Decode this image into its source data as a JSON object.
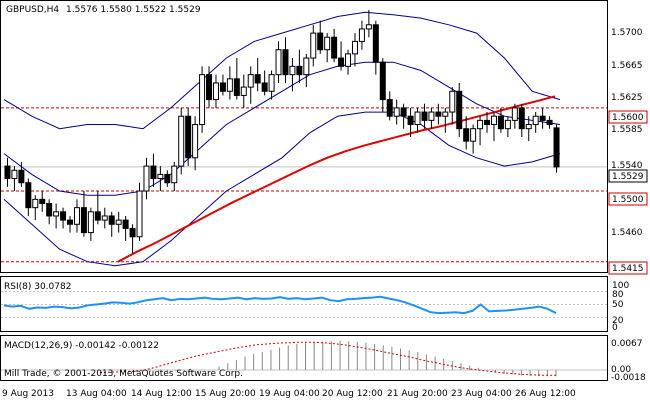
{
  "header": {
    "symbol": "GBPUSD,H4",
    "ohlc": "1.5576 1.5580 1.5522 1.5529"
  },
  "colors": {
    "background": "#ffffff",
    "candle_bull": "#ffffff",
    "candle_bear": "#000000",
    "bollinger": "#00008b",
    "moving_average": "#e00000",
    "level_line": "#cc0000",
    "rsi_line": "#1e90ff",
    "macd_signal": "#cc0000",
    "macd_hist": "#888888",
    "grid": "#c0c0c0"
  },
  "main_panel": {
    "price_axis_ticks": [
      "1.5700",
      "1.5665",
      "1.5625",
      "1.5585",
      "1.5540",
      "1.5460"
    ],
    "levels": [
      {
        "label": "1.5600",
        "price": 1.56
      },
      {
        "label": "1.5500",
        "price": 1.55
      },
      {
        "label": "1.5415",
        "price": 1.5415
      }
    ],
    "current_price_label": "1.5529",
    "current_price": 1.5529
  },
  "rsi_panel": {
    "title": "RSI(8) 30.0782",
    "axis_ticks": [
      "100",
      "80",
      "50",
      "20",
      "0"
    ]
  },
  "macd_panel": {
    "title": "MACD(12,26,9) -0.00142 -0.00122",
    "copyright": "Mill Trade, © 2001-2013, MetaQuotes Software Corp.",
    "axis_ticks": [
      "0.0067",
      "0.00",
      "-0.0018"
    ]
  },
  "time_axis": {
    "labels": [
      "9 Aug 2013",
      "13 Aug 04:00",
      "14 Aug 12:00",
      "15 Aug 20:00",
      "19 Aug 04:00",
      "20 Aug 12:00",
      "21 Aug 20:00",
      "23 Aug 04:00",
      "26 Aug 12:00"
    ]
  },
  "chart_data": {
    "type": "candlestick",
    "price_range": [
      1.5405,
      1.5725
    ],
    "candles": [
      {
        "o": 1.553,
        "h": 1.554,
        "l": 1.5505,
        "c": 1.5515
      },
      {
        "o": 1.5515,
        "h": 1.553,
        "l": 1.55,
        "c": 1.5525
      },
      {
        "o": 1.5525,
        "h": 1.5535,
        "l": 1.5505,
        "c": 1.551
      },
      {
        "o": 1.551,
        "h": 1.5515,
        "l": 1.547,
        "c": 1.548
      },
      {
        "o": 1.548,
        "h": 1.5495,
        "l": 1.5465,
        "c": 1.549
      },
      {
        "o": 1.549,
        "h": 1.55,
        "l": 1.5475,
        "c": 1.5485
      },
      {
        "o": 1.5485,
        "h": 1.549,
        "l": 1.546,
        "c": 1.547
      },
      {
        "o": 1.547,
        "h": 1.5485,
        "l": 1.5455,
        "c": 1.5475
      },
      {
        "o": 1.5475,
        "h": 1.548,
        "l": 1.5455,
        "c": 1.5465
      },
      {
        "o": 1.5465,
        "h": 1.547,
        "l": 1.545,
        "c": 1.546
      },
      {
        "o": 1.546,
        "h": 1.549,
        "l": 1.545,
        "c": 1.548
      },
      {
        "o": 1.548,
        "h": 1.55,
        "l": 1.5445,
        "c": 1.545
      },
      {
        "o": 1.545,
        "h": 1.548,
        "l": 1.544,
        "c": 1.5475
      },
      {
        "o": 1.5475,
        "h": 1.55,
        "l": 1.546,
        "c": 1.5465
      },
      {
        "o": 1.5465,
        "h": 1.548,
        "l": 1.5455,
        "c": 1.547
      },
      {
        "o": 1.547,
        "h": 1.5475,
        "l": 1.5445,
        "c": 1.546
      },
      {
        "o": 1.546,
        "h": 1.5475,
        "l": 1.545,
        "c": 1.5465
      },
      {
        "o": 1.5465,
        "h": 1.547,
        "l": 1.544,
        "c": 1.5455
      },
      {
        "o": 1.5455,
        "h": 1.546,
        "l": 1.5425,
        "c": 1.5445
      },
      {
        "o": 1.5445,
        "h": 1.551,
        "l": 1.544,
        "c": 1.55
      },
      {
        "o": 1.55,
        "h": 1.554,
        "l": 1.549,
        "c": 1.553
      },
      {
        "o": 1.553,
        "h": 1.5545,
        "l": 1.5505,
        "c": 1.5515
      },
      {
        "o": 1.5515,
        "h": 1.553,
        "l": 1.55,
        "c": 1.552
      },
      {
        "o": 1.552,
        "h": 1.5525,
        "l": 1.5505,
        "c": 1.551
      },
      {
        "o": 1.551,
        "h": 1.5535,
        "l": 1.55,
        "c": 1.553
      },
      {
        "o": 1.553,
        "h": 1.56,
        "l": 1.552,
        "c": 1.559
      },
      {
        "o": 1.559,
        "h": 1.56,
        "l": 1.553,
        "c": 1.554
      },
      {
        "o": 1.554,
        "h": 1.559,
        "l": 1.5525,
        "c": 1.558
      },
      {
        "o": 1.558,
        "h": 1.565,
        "l": 1.557,
        "c": 1.564
      },
      {
        "o": 1.564,
        "h": 1.565,
        "l": 1.56,
        "c": 1.561
      },
      {
        "o": 1.561,
        "h": 1.564,
        "l": 1.56,
        "c": 1.563
      },
      {
        "o": 1.563,
        "h": 1.564,
        "l": 1.5615,
        "c": 1.562
      },
      {
        "o": 1.562,
        "h": 1.565,
        "l": 1.561,
        "c": 1.5635
      },
      {
        "o": 1.5635,
        "h": 1.566,
        "l": 1.561,
        "c": 1.5615
      },
      {
        "o": 1.5615,
        "h": 1.564,
        "l": 1.56,
        "c": 1.5625
      },
      {
        "o": 1.5625,
        "h": 1.565,
        "l": 1.5605,
        "c": 1.564
      },
      {
        "o": 1.564,
        "h": 1.566,
        "l": 1.562,
        "c": 1.563
      },
      {
        "o": 1.563,
        "h": 1.5645,
        "l": 1.5615,
        "c": 1.562
      },
      {
        "o": 1.562,
        "h": 1.5645,
        "l": 1.561,
        "c": 1.564
      },
      {
        "o": 1.564,
        "h": 1.568,
        "l": 1.563,
        "c": 1.567
      },
      {
        "o": 1.567,
        "h": 1.5685,
        "l": 1.563,
        "c": 1.564
      },
      {
        "o": 1.564,
        "h": 1.566,
        "l": 1.562,
        "c": 1.565
      },
      {
        "o": 1.565,
        "h": 1.567,
        "l": 1.563,
        "c": 1.564
      },
      {
        "o": 1.564,
        "h": 1.5665,
        "l": 1.5625,
        "c": 1.566
      },
      {
        "o": 1.566,
        "h": 1.57,
        "l": 1.565,
        "c": 1.569
      },
      {
        "o": 1.569,
        "h": 1.5705,
        "l": 1.5665,
        "c": 1.567
      },
      {
        "o": 1.567,
        "h": 1.569,
        "l": 1.5655,
        "c": 1.5685
      },
      {
        "o": 1.5685,
        "h": 1.5695,
        "l": 1.5655,
        "c": 1.566
      },
      {
        "o": 1.566,
        "h": 1.568,
        "l": 1.5645,
        "c": 1.565
      },
      {
        "o": 1.565,
        "h": 1.567,
        "l": 1.564,
        "c": 1.5665
      },
      {
        "o": 1.5665,
        "h": 1.569,
        "l": 1.565,
        "c": 1.568
      },
      {
        "o": 1.568,
        "h": 1.5705,
        "l": 1.567,
        "c": 1.5695
      },
      {
        "o": 1.5695,
        "h": 1.5718,
        "l": 1.5685,
        "c": 1.57
      },
      {
        "o": 1.57,
        "h": 1.5705,
        "l": 1.564,
        "c": 1.5655
      },
      {
        "o": 1.5655,
        "h": 1.566,
        "l": 1.5595,
        "c": 1.561
      },
      {
        "o": 1.561,
        "h": 1.562,
        "l": 1.5585,
        "c": 1.559
      },
      {
        "o": 1.559,
        "h": 1.561,
        "l": 1.558,
        "c": 1.56
      },
      {
        "o": 1.56,
        "h": 1.5605,
        "l": 1.5575,
        "c": 1.559
      },
      {
        "o": 1.559,
        "h": 1.56,
        "l": 1.5565,
        "c": 1.558
      },
      {
        "o": 1.558,
        "h": 1.56,
        "l": 1.557,
        "c": 1.5595
      },
      {
        "o": 1.5595,
        "h": 1.5605,
        "l": 1.5575,
        "c": 1.5585
      },
      {
        "o": 1.5585,
        "h": 1.56,
        "l": 1.5575,
        "c": 1.5595
      },
      {
        "o": 1.5595,
        "h": 1.5605,
        "l": 1.558,
        "c": 1.559
      },
      {
        "o": 1.559,
        "h": 1.56,
        "l": 1.557,
        "c": 1.5595
      },
      {
        "o": 1.5595,
        "h": 1.5625,
        "l": 1.558,
        "c": 1.562
      },
      {
        "o": 1.562,
        "h": 1.563,
        "l": 1.5565,
        "c": 1.5575
      },
      {
        "o": 1.5575,
        "h": 1.559,
        "l": 1.555,
        "c": 1.556
      },
      {
        "o": 1.556,
        "h": 1.558,
        "l": 1.5545,
        "c": 1.5575
      },
      {
        "o": 1.5575,
        "h": 1.559,
        "l": 1.5555,
        "c": 1.5585
      },
      {
        "o": 1.5585,
        "h": 1.5595,
        "l": 1.557,
        "c": 1.558
      },
      {
        "o": 1.558,
        "h": 1.5595,
        "l": 1.556,
        "c": 1.559
      },
      {
        "o": 1.559,
        "h": 1.56,
        "l": 1.557,
        "c": 1.5575
      },
      {
        "o": 1.5575,
        "h": 1.559,
        "l": 1.5565,
        "c": 1.5585
      },
      {
        "o": 1.5585,
        "h": 1.5605,
        "l": 1.5575,
        "c": 1.56
      },
      {
        "o": 1.56,
        "h": 1.5605,
        "l": 1.5565,
        "c": 1.5575
      },
      {
        "o": 1.5575,
        "h": 1.559,
        "l": 1.556,
        "c": 1.558
      },
      {
        "o": 1.558,
        "h": 1.5595,
        "l": 1.557,
        "c": 1.559
      },
      {
        "o": 1.559,
        "h": 1.56,
        "l": 1.5575,
        "c": 1.5585
      },
      {
        "o": 1.5585,
        "h": 1.559,
        "l": 1.5575,
        "c": 1.558
      },
      {
        "o": 1.5576,
        "h": 1.558,
        "l": 1.5522,
        "c": 1.5529
      }
    ],
    "moving_average": [
      1.5415,
      1.5427,
      1.5438,
      1.545,
      1.5462,
      1.5474,
      1.5486,
      1.5497,
      1.5508,
      1.5519,
      1.553,
      1.554,
      1.5548,
      1.5555,
      1.5561,
      1.5567,
      1.5573,
      1.5578,
      1.5584,
      1.559,
      1.5596,
      1.5602,
      1.5608,
      1.5614
    ],
    "bollinger_upper": [
      1.561,
      1.559,
      1.5575,
      1.558,
      1.558,
      1.5575,
      1.56,
      1.563,
      1.566,
      1.568,
      1.569,
      1.57,
      1.571,
      1.5715,
      1.5712,
      1.5708,
      1.57,
      1.569,
      1.566,
      1.562,
      1.561
    ],
    "bollinger_middle": [
      1.5545,
      1.552,
      1.55,
      1.5495,
      1.5495,
      1.55,
      1.552,
      1.555,
      1.558,
      1.56,
      1.562,
      1.564,
      1.565,
      1.5655,
      1.5655,
      1.5645,
      1.5625,
      1.5605,
      1.559,
      1.5585,
      1.558
    ],
    "bollinger_lower": [
      1.549,
      1.546,
      1.543,
      1.5415,
      1.541,
      1.5415,
      1.544,
      1.547,
      1.55,
      1.552,
      1.554,
      1.557,
      1.559,
      1.5595,
      1.5595,
      1.558,
      1.5555,
      1.554,
      1.553,
      1.5535,
      1.5545
    ],
    "rsi": [
      48,
      45,
      47,
      40,
      43,
      42,
      45,
      44,
      41,
      43,
      48,
      50,
      52,
      55,
      54,
      52,
      55,
      60,
      62,
      65,
      60,
      63,
      62,
      64,
      66,
      63,
      62,
      64,
      66,
      62,
      65,
      63,
      64,
      67,
      63,
      65,
      62,
      64,
      66,
      60,
      58,
      62,
      63,
      65,
      66,
      68,
      64,
      60,
      55,
      48,
      40,
      32,
      30,
      31,
      32,
      30,
      35,
      50,
      34,
      35,
      36,
      38,
      40,
      42,
      45,
      40,
      30
    ],
    "rsi_range": [
      0,
      100
    ],
    "rsi_levels": [
      80,
      50,
      20
    ],
    "macd_hist": [
      -0.0005,
      -0.0004,
      -0.0004,
      -0.0003,
      -0.0003,
      -0.0002,
      -0.0001,
      0.0,
      0.0008,
      0.0015,
      0.0022,
      0.003,
      0.0036,
      0.004,
      0.0045,
      0.005,
      0.0055,
      0.0058,
      0.006,
      0.0062,
      0.0063,
      0.0064,
      0.0065,
      0.0064,
      0.0063,
      0.0061,
      0.0058,
      0.0055,
      0.0052,
      0.0048,
      0.0044,
      0.004,
      0.0035,
      0.003,
      0.0025,
      0.002,
      0.0015,
      0.001,
      0.0005,
      0.0,
      -0.0004,
      -0.0008,
      -0.001,
      -0.0012,
      -0.0013,
      -0.0014,
      -0.0014,
      -0.0014
    ],
    "macd_signal": [
      -0.0006,
      -0.0005,
      -0.0004,
      -0.0003,
      0.0,
      0.0006,
      0.0013,
      0.002,
      0.0027,
      0.0033,
      0.0038,
      0.0043,
      0.0048,
      0.0052,
      0.0056,
      0.0058,
      0.006,
      0.0061,
      0.0062,
      0.0062,
      0.0061,
      0.0059,
      0.0056,
      0.0052,
      0.0048,
      0.0043,
      0.0038,
      0.0033,
      0.0028,
      0.0022,
      0.0017,
      0.0012,
      0.0007,
      0.0003,
      0.0,
      -0.0003,
      -0.0006,
      -0.0008,
      -0.001,
      -0.0011,
      -0.0012,
      -0.0012
    ],
    "macd_range": [
      -0.0018,
      0.0067
    ]
  }
}
